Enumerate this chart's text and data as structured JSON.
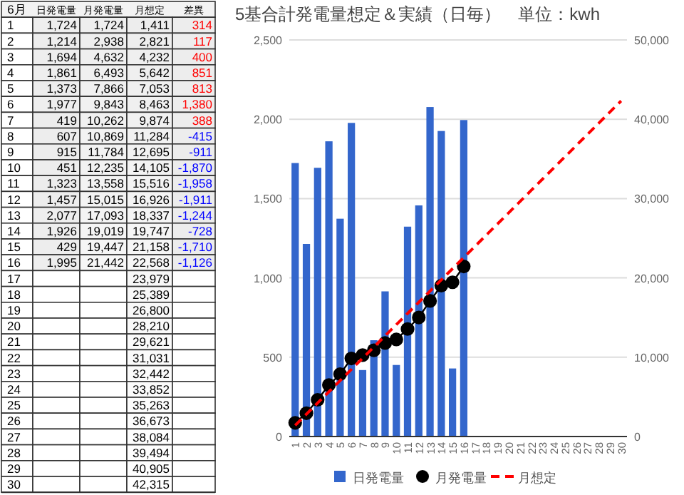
{
  "chart_data": [
    {
      "type": "heatmap",
      "ylabel": "6月",
      "categories": [
        "日発電量",
        "月発電量",
        "月想定",
        "差異"
      ],
      "y_categories": [
        "1",
        "2",
        "3",
        "4",
        "5",
        "6",
        "7",
        "8",
        "9",
        "10",
        "11",
        "12",
        "13",
        "14",
        "15",
        "16",
        "17",
        "18",
        "19",
        "20",
        "21",
        "22",
        "23",
        "24",
        "25",
        "26",
        "27",
        "28",
        "29",
        "30"
      ],
      "cells": [
        [
          1724,
          1724,
          1411,
          314
        ],
        [
          1214,
          2938,
          2821,
          117
        ],
        [
          1694,
          4632,
          4232,
          400
        ],
        [
          1861,
          6493,
          5642,
          851
        ],
        [
          1373,
          7866,
          7053,
          813
        ],
        [
          1977,
          9843,
          8463,
          1380
        ],
        [
          419,
          10262,
          9874,
          388
        ],
        [
          607,
          10869,
          11284,
          -415
        ],
        [
          915,
          11784,
          12695,
          -911
        ],
        [
          451,
          12235,
          14105,
          -1870
        ],
        [
          1323,
          13558,
          15516,
          -1958
        ],
        [
          1457,
          15015,
          16926,
          -1911
        ],
        [
          2077,
          17093,
          18337,
          -1244
        ],
        [
          1926,
          19019,
          19747,
          -728
        ],
        [
          429,
          19447,
          21158,
          -1710
        ],
        [
          1995,
          21442,
          22568,
          -1126
        ],
        [
          null,
          null,
          23979,
          null
        ],
        [
          null,
          null,
          25389,
          null
        ],
        [
          null,
          null,
          26800,
          null
        ],
        [
          null,
          null,
          28210,
          null
        ],
        [
          null,
          null,
          29621,
          null
        ],
        [
          null,
          null,
          31031,
          null
        ],
        [
          null,
          null,
          32442,
          null
        ],
        [
          null,
          null,
          33852,
          null
        ],
        [
          null,
          null,
          35263,
          null
        ],
        [
          null,
          null,
          36673,
          null
        ],
        [
          null,
          null,
          38084,
          null
        ],
        [
          null,
          null,
          39494,
          null
        ],
        [
          null,
          null,
          40905,
          null
        ],
        [
          null,
          null,
          42315,
          null
        ]
      ],
      "cell_labels": [
        [
          "1,724",
          "1,724",
          "1,411",
          "314"
        ],
        [
          "1,214",
          "2,938",
          "2,821",
          "117"
        ],
        [
          "1,694",
          "4,632",
          "4,232",
          "400"
        ],
        [
          "1,861",
          "6,493",
          "5,642",
          "851"
        ],
        [
          "1,373",
          "7,866",
          "7,053",
          "813"
        ],
        [
          "1,977",
          "9,843",
          "8,463",
          "1,380"
        ],
        [
          "419",
          "10,262",
          "9,874",
          "388"
        ],
        [
          "607",
          "10,869",
          "11,284",
          "-415"
        ],
        [
          "915",
          "11,784",
          "12,695",
          "-911"
        ],
        [
          "451",
          "12,235",
          "14,105",
          "-1,870"
        ],
        [
          "1,323",
          "13,558",
          "15,516",
          "-1,958"
        ],
        [
          "1,457",
          "15,015",
          "16,926",
          "-1,911"
        ],
        [
          "2,077",
          "17,093",
          "18,337",
          "-1,244"
        ],
        [
          "1,926",
          "19,019",
          "19,747",
          "-728"
        ],
        [
          "429",
          "19,447",
          "21,158",
          "-1,710"
        ],
        [
          "1,995",
          "21,442",
          "22,568",
          "-1,126"
        ],
        [
          null,
          null,
          "23,979",
          null
        ],
        [
          null,
          null,
          "25,389",
          null
        ],
        [
          null,
          null,
          "26,800",
          null
        ],
        [
          null,
          null,
          "28,210",
          null
        ],
        [
          null,
          null,
          "29,621",
          null
        ],
        [
          null,
          null,
          "31,031",
          null
        ],
        [
          null,
          null,
          "32,442",
          null
        ],
        [
          null,
          null,
          "33,852",
          null
        ],
        [
          null,
          null,
          "35,263",
          null
        ],
        [
          null,
          null,
          "36,673",
          null
        ],
        [
          null,
          null,
          "38,084",
          null
        ],
        [
          null,
          null,
          "39,494",
          null
        ],
        [
          null,
          null,
          "40,905",
          null
        ],
        [
          null,
          null,
          "42,315",
          null
        ]
      ]
    },
    {
      "type": "bar",
      "title": "5基合計発電量想定＆実績（日毎）　単位：kwh",
      "categories": [
        "1",
        "2",
        "3",
        "4",
        "5",
        "6",
        "7",
        "8",
        "9",
        "10",
        "11",
        "12",
        "13",
        "14",
        "15",
        "16",
        "17",
        "18",
        "19",
        "20",
        "21",
        "22",
        "23",
        "24",
        "25",
        "26",
        "27",
        "28",
        "29",
        "30"
      ],
      "ylim": [
        0,
        2500
      ],
      "yticks": [
        {
          "value": 0,
          "label": "0"
        },
        {
          "value": 500,
          "label": "500"
        },
        {
          "value": 1000,
          "label": "1,000"
        },
        {
          "value": 1500,
          "label": "1,500"
        },
        {
          "value": 2000,
          "label": "2,000"
        },
        {
          "value": 2500,
          "label": "2,500"
        }
      ],
      "y2lim": [
        0,
        50000
      ],
      "y2ticks": [
        {
          "value": 0,
          "label": "0"
        },
        {
          "value": 10000,
          "label": "10,000"
        },
        {
          "value": 20000,
          "label": "20,000"
        },
        {
          "value": 30000,
          "label": "30,000"
        },
        {
          "value": 40000,
          "label": "40,000"
        },
        {
          "value": 50000,
          "label": "50,000"
        }
      ],
      "grid": "y",
      "legend": "bottom",
      "series": [
        {
          "name": "日発電量",
          "type": "bar",
          "color": "#3366cc",
          "values": [
            1724,
            1214,
            1694,
            1861,
            1373,
            1977,
            419,
            607,
            915,
            451,
            1323,
            1457,
            2077,
            1926,
            429,
            1995,
            null,
            null,
            null,
            null,
            null,
            null,
            null,
            null,
            null,
            null,
            null,
            null,
            null,
            null
          ]
        },
        {
          "name": "月発電量",
          "type": "line",
          "axis": "y2",
          "color": "#000000",
          "marker": "circle",
          "line_style": "solid",
          "values": [
            1724,
            2938,
            4632,
            6493,
            7866,
            9843,
            10262,
            10869,
            11784,
            12235,
            13558,
            15015,
            17093,
            19019,
            19447,
            21442,
            null,
            null,
            null,
            null,
            null,
            null,
            null,
            null,
            null,
            null,
            null,
            null,
            null,
            null
          ]
        },
        {
          "name": "月想定",
          "type": "line",
          "axis": "y2",
          "color": "#ff0000",
          "marker": "none",
          "line_style": "dashed",
          "values": [
            1411,
            2821,
            4232,
            5642,
            7053,
            8463,
            9874,
            11284,
            12695,
            14105,
            15516,
            16926,
            18337,
            19747,
            21158,
            22568,
            23979,
            25389,
            26800,
            28210,
            29621,
            31031,
            32442,
            33852,
            35263,
            36673,
            38084,
            39494,
            40905,
            42315
          ]
        }
      ]
    }
  ]
}
